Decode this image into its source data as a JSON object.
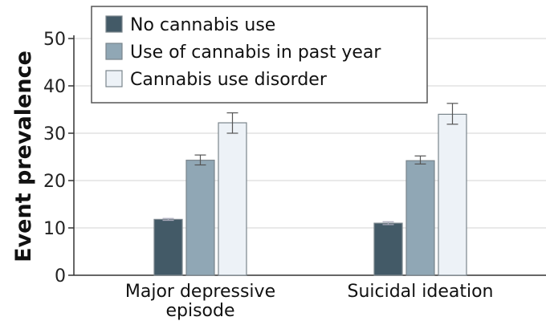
{
  "chart_data": {
    "type": "bar",
    "title": "",
    "xlabel": "",
    "ylabel": "Event prevalence",
    "ylim": [
      0,
      50
    ],
    "yticks": [
      0,
      10,
      20,
      30,
      40,
      50
    ],
    "grid": true,
    "legend_position": "top-left",
    "categories": [
      "Major depressive episode",
      "Suicidal ideation"
    ],
    "category_label_lines": [
      [
        "Major depressive",
        "episode"
      ],
      [
        "Suicidal ideation"
      ]
    ],
    "series": [
      {
        "name": "No cannabis use",
        "color": "#435a67",
        "values": [
          11.8,
          11.0
        ],
        "err_low": [
          11.6,
          10.7
        ],
        "err_high": [
          12.0,
          11.3
        ]
      },
      {
        "name": "Use of cannabis in past year",
        "color": "#90a7b5",
        "values": [
          24.3,
          24.2
        ],
        "err_low": [
          23.3,
          23.5
        ],
        "err_high": [
          25.4,
          25.2
        ]
      },
      {
        "name": "Cannabis use disorder",
        "color": "#edf2f7",
        "values": [
          32.2,
          34.0
        ],
        "err_low": [
          30.0,
          31.9
        ],
        "err_high": [
          34.3,
          36.3
        ]
      }
    ]
  }
}
